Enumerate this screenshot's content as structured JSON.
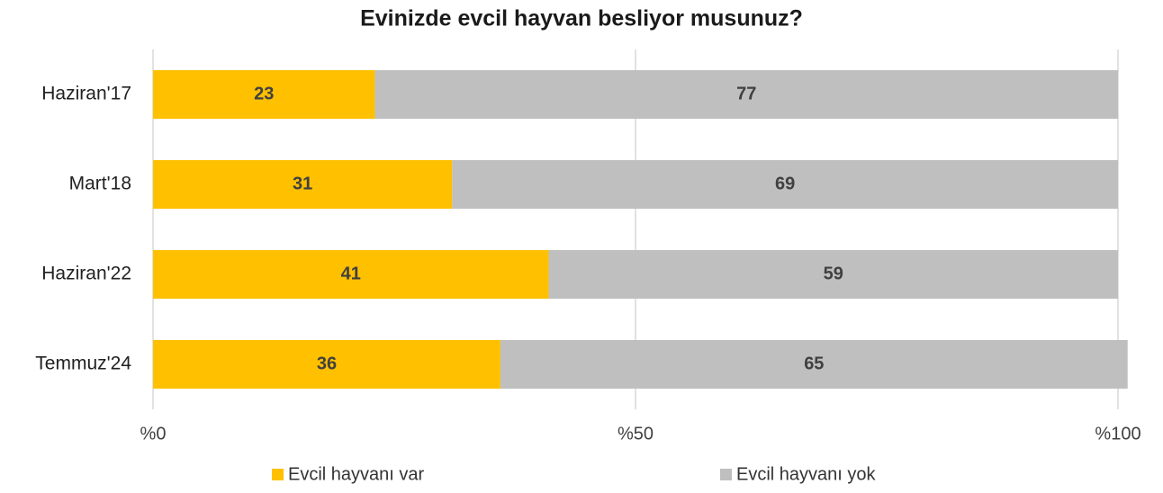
{
  "chart_data": {
    "type": "stacked-bar-horizontal",
    "title": "Evinizde evcil hayvan besliyor musunuz?",
    "categories": [
      "Haziran'17",
      "Mart'18",
      "Haziran'22",
      "Temmuz'24"
    ],
    "series": [
      {
        "name": "Evcil hayvanı var",
        "color": "#ffc000",
        "values": [
          23,
          31,
          41,
          36
        ]
      },
      {
        "name": "Evcil hayvanı yok",
        "color": "#bfbfbf",
        "values": [
          77,
          69,
          59,
          65
        ]
      }
    ],
    "xlim": [
      0,
      100
    ],
    "xticks": [
      {
        "value": 0,
        "label": "%0"
      },
      {
        "value": 50,
        "label": "%50"
      },
      {
        "value": 100,
        "label": "%100"
      }
    ],
    "grid": true,
    "legend": "bottom"
  }
}
